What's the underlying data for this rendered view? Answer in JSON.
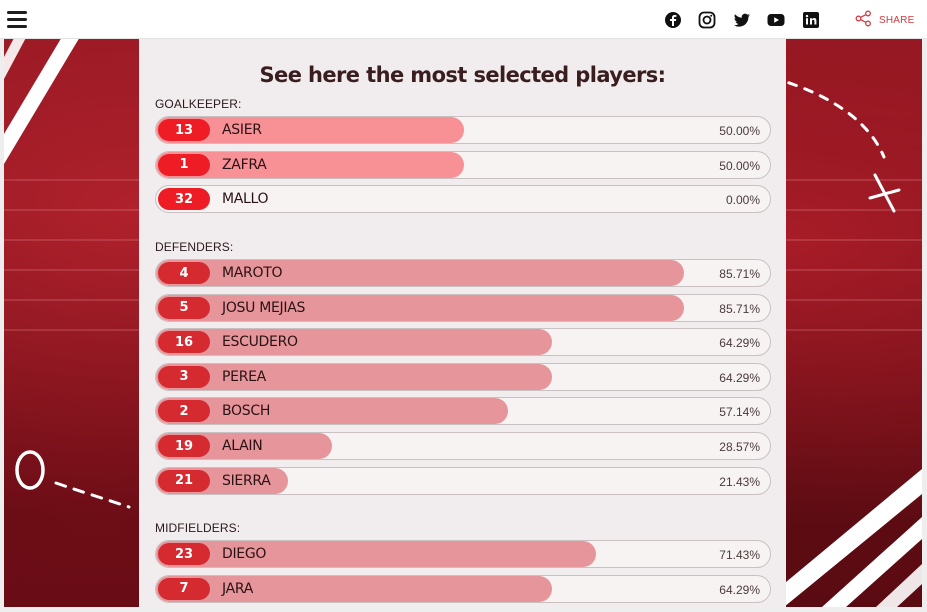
{
  "header": {
    "share_label": "SHARE",
    "social": [
      "facebook-icon",
      "instagram-icon",
      "twitter-icon",
      "youtube-icon",
      "linkedin-icon"
    ]
  },
  "colors": {
    "accent": "#d8393e",
    "badge_gk": "#ee1c24",
    "fill_gk": "#f79196",
    "badge": "#d42a30",
    "fill": "#e6969a"
  },
  "title": "See here the most selected players:",
  "sections": [
    {
      "title": "GOALKEEPER:",
      "players": [
        {
          "number": "13",
          "name": "ASIER",
          "percent_label": "50.00%",
          "percent": 50.0
        },
        {
          "number": "1",
          "name": "ZAFRA",
          "percent_label": "50.00%",
          "percent": 50.0
        },
        {
          "number": "32",
          "name": "MALLO",
          "percent_label": "0.00%",
          "percent": 0.0
        }
      ]
    },
    {
      "title": "DEFENDERS:",
      "players": [
        {
          "number": "4",
          "name": "MAROTO",
          "percent_label": "85.71%",
          "percent": 85.71
        },
        {
          "number": "5",
          "name": "JOSU MEJIAS",
          "percent_label": "85.71%",
          "percent": 85.71
        },
        {
          "number": "16",
          "name": "ESCUDERO",
          "percent_label": "64.29%",
          "percent": 64.29
        },
        {
          "number": "3",
          "name": "PEREA",
          "percent_label": "64.29%",
          "percent": 64.29
        },
        {
          "number": "2",
          "name": "BOSCH",
          "percent_label": "57.14%",
          "percent": 57.14
        },
        {
          "number": "19",
          "name": "ALAIN",
          "percent_label": "28.57%",
          "percent": 28.57
        },
        {
          "number": "21",
          "name": "SIERRA",
          "percent_label": "21.43%",
          "percent": 21.43
        }
      ]
    },
    {
      "title": "MIDFIELDERS:",
      "players": [
        {
          "number": "23",
          "name": "DIEGO",
          "percent_label": "71.43%",
          "percent": 71.43
        },
        {
          "number": "7",
          "name": "JARA",
          "percent_label": "64.29%",
          "percent": 64.29
        }
      ]
    }
  ]
}
